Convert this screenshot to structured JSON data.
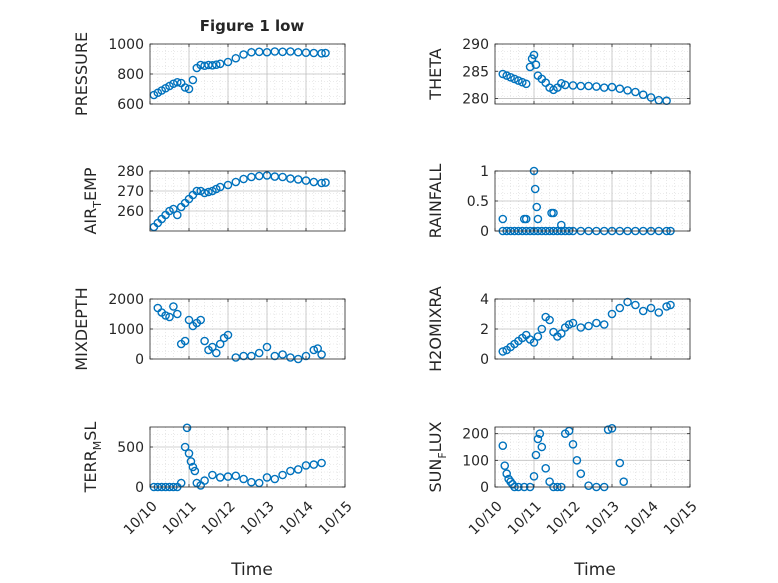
{
  "figure": {
    "title": "Figure 1 low",
    "xlabel": "Time"
  },
  "marker_color": "#0072BD",
  "x_ticks": [
    "10/10",
    "10/11",
    "10/12",
    "10/13",
    "10/14",
    "10/15"
  ],
  "chart_data": [
    {
      "type": "scatter",
      "id": "pressure",
      "ylabel": "PRESSURE",
      "title": "Figure 1 low",
      "xlim": [
        0,
        5
      ],
      "ylim": [
        600,
        1000
      ],
      "yticks": [
        600,
        800,
        1000
      ],
      "yticklabels": [
        "600",
        "800",
        "1000"
      ],
      "grid": true,
      "x": [
        0.1,
        0.2,
        0.3,
        0.4,
        0.5,
        0.6,
        0.7,
        0.8,
        0.9,
        1.0,
        1.1,
        1.2,
        1.3,
        1.4,
        1.5,
        1.6,
        1.7,
        1.8,
        2.0,
        2.2,
        2.4,
        2.6,
        2.8,
        3.0,
        3.2,
        3.4,
        3.6,
        3.8,
        4.0,
        4.2,
        4.4,
        4.5
      ],
      "y": [
        660,
        675,
        690,
        705,
        720,
        735,
        745,
        740,
        710,
        700,
        760,
        840,
        860,
        855,
        860,
        858,
        862,
        868,
        880,
        905,
        930,
        945,
        948,
        945,
        950,
        948,
        950,
        945,
        942,
        940,
        938,
        940
      ]
    },
    {
      "type": "scatter",
      "id": "theta",
      "ylabel": "THETA",
      "xlim": [
        0,
        5
      ],
      "ylim": [
        279,
        290
      ],
      "yticks": [
        280,
        285,
        290
      ],
      "yticklabels": [
        "280",
        "285",
        "290"
      ],
      "grid": true,
      "x": [
        0.2,
        0.3,
        0.4,
        0.5,
        0.6,
        0.7,
        0.8,
        0.9,
        0.95,
        1.0,
        1.05,
        1.1,
        1.2,
        1.3,
        1.4,
        1.5,
        1.6,
        1.7,
        1.8,
        2.0,
        2.2,
        2.4,
        2.6,
        2.8,
        3.0,
        3.2,
        3.4,
        3.6,
        3.8,
        4.0,
        4.2,
        4.4
      ],
      "y": [
        284.5,
        284.2,
        283.9,
        283.6,
        283.3,
        283.0,
        282.7,
        285.8,
        287.3,
        288.0,
        286.2,
        284.2,
        283.6,
        282.9,
        282.0,
        281.6,
        282.0,
        282.8,
        282.5,
        282.4,
        282.3,
        282.3,
        282.2,
        282.0,
        282.1,
        281.8,
        281.5,
        281.2,
        280.7,
        280.2,
        279.7,
        279.6
      ]
    },
    {
      "type": "scatter",
      "id": "air_temp",
      "ylabel": "AIR_TEMP",
      "xlim": [
        0,
        5
      ],
      "ylim": [
        250,
        280
      ],
      "yticks": [
        260,
        270,
        280
      ],
      "yticklabels": [
        "260",
        "270",
        "280"
      ],
      "grid": true,
      "x": [
        0.1,
        0.2,
        0.3,
        0.4,
        0.5,
        0.6,
        0.7,
        0.8,
        0.9,
        1.0,
        1.1,
        1.2,
        1.3,
        1.4,
        1.5,
        1.6,
        1.7,
        1.8,
        2.0,
        2.2,
        2.4,
        2.6,
        2.8,
        3.0,
        3.2,
        3.4,
        3.6,
        3.8,
        4.0,
        4.2,
        4.4,
        4.5
      ],
      "y": [
        252,
        254,
        256,
        258,
        260,
        261,
        258,
        262,
        264,
        266,
        268,
        270,
        270,
        269,
        269.5,
        270,
        271,
        272,
        273,
        274.5,
        276,
        277,
        277.5,
        277.8,
        277.2,
        277.0,
        276.2,
        275.8,
        275.2,
        274.5,
        274.0,
        274.2
      ]
    },
    {
      "type": "scatter",
      "id": "rainfall",
      "ylabel": "RAINFALL",
      "xlim": [
        0,
        5
      ],
      "ylim": [
        0,
        1
      ],
      "yticks": [
        0,
        0.5,
        1
      ],
      "yticklabels": [
        "0",
        "0.5",
        "1"
      ],
      "grid": true,
      "x": [
        0.2,
        0.3,
        0.4,
        0.5,
        0.6,
        0.7,
        0.8,
        0.9,
        1.0,
        1.1,
        1.2,
        1.3,
        1.4,
        1.5,
        1.6,
        1.7,
        1.8,
        1.9,
        2.0,
        2.2,
        2.4,
        2.6,
        2.8,
        3.0,
        3.2,
        3.4,
        3.6,
        3.8,
        4.0,
        4.2,
        4.4,
        4.5,
        0.2,
        0.75,
        0.8,
        1.0,
        1.03,
        1.07,
        1.1,
        1.45,
        1.5,
        1.7
      ],
      "y": [
        0,
        0,
        0,
        0,
        0,
        0,
        0,
        0,
        0,
        0,
        0,
        0,
        0,
        0,
        0,
        0,
        0,
        0,
        0,
        0,
        0,
        0,
        0,
        0,
        0,
        0,
        0,
        0,
        0,
        0,
        0,
        0,
        0.2,
        0.2,
        0.2,
        1.0,
        0.7,
        0.4,
        0.2,
        0.3,
        0.3,
        0.1
      ]
    },
    {
      "type": "scatter",
      "id": "mixdepth",
      "ylabel": "MIXDEPTH",
      "xlim": [
        0,
        5
      ],
      "ylim": [
        0,
        2000
      ],
      "yticks": [
        0,
        1000,
        2000
      ],
      "yticklabels": [
        "0",
        "1000",
        "2000"
      ],
      "grid": true,
      "x": [
        0.2,
        0.3,
        0.4,
        0.5,
        0.6,
        0.7,
        0.8,
        0.9,
        1.0,
        1.1,
        1.2,
        1.3,
        1.4,
        1.5,
        1.6,
        1.7,
        1.8,
        1.9,
        2.0,
        2.2,
        2.4,
        2.6,
        2.8,
        3.0,
        3.2,
        3.4,
        3.6,
        3.8,
        4.0,
        4.2,
        4.3,
        4.4
      ],
      "y": [
        1700,
        1550,
        1450,
        1400,
        1750,
        1500,
        500,
        600,
        1300,
        1100,
        1200,
        1300,
        600,
        300,
        400,
        200,
        500,
        700,
        800,
        50,
        100,
        100,
        200,
        400,
        100,
        150,
        50,
        0,
        100,
        300,
        350,
        150
      ]
    },
    {
      "type": "scatter",
      "id": "h2omixra",
      "ylabel": "H2OMIXRA",
      "xlim": [
        0,
        5
      ],
      "ylim": [
        0,
        4
      ],
      "yticks": [
        0,
        2,
        4
      ],
      "yticklabels": [
        "0",
        "2",
        "4"
      ],
      "grid": true,
      "x": [
        0.2,
        0.3,
        0.4,
        0.5,
        0.6,
        0.7,
        0.8,
        0.9,
        1.0,
        1.1,
        1.2,
        1.3,
        1.4,
        1.5,
        1.6,
        1.7,
        1.8,
        1.9,
        2.0,
        2.2,
        2.4,
        2.6,
        2.8,
        3.0,
        3.2,
        3.4,
        3.6,
        3.8,
        4.0,
        4.2,
        4.4,
        4.5
      ],
      "y": [
        0.5,
        0.6,
        0.8,
        1.0,
        1.2,
        1.4,
        1.6,
        1.3,
        1.1,
        1.5,
        2.0,
        2.8,
        2.6,
        1.8,
        1.5,
        1.7,
        2.1,
        2.3,
        2.4,
        2.1,
        2.2,
        2.4,
        2.3,
        3.0,
        3.4,
        3.8,
        3.6,
        3.2,
        3.4,
        3.1,
        3.5,
        3.6
      ]
    },
    {
      "type": "scatter",
      "id": "terr_msl",
      "ylabel": "TERR_MSL",
      "xlim": [
        0,
        5
      ],
      "ylim": [
        0,
        750
      ],
      "yticks": [
        0,
        500
      ],
      "yticklabels": [
        "0",
        "500"
      ],
      "grid": true,
      "x": [
        0.1,
        0.2,
        0.3,
        0.4,
        0.5,
        0.6,
        0.7,
        0.8,
        0.9,
        0.95,
        1.0,
        1.05,
        1.1,
        1.15,
        1.2,
        1.3,
        1.4,
        1.6,
        1.8,
        2.0,
        2.2,
        2.4,
        2.6,
        2.8,
        3.0,
        3.2,
        3.4,
        3.6,
        3.8,
        4.0,
        4.2,
        4.4
      ],
      "y": [
        0,
        0,
        0,
        0,
        0,
        0,
        0,
        50,
        500,
        740,
        420,
        320,
        250,
        200,
        50,
        20,
        80,
        150,
        120,
        130,
        140,
        100,
        60,
        50,
        120,
        100,
        150,
        200,
        220,
        270,
        280,
        300
      ]
    },
    {
      "type": "scatter",
      "id": "sun_flux",
      "ylabel": "SUN_FLUX",
      "xlim": [
        0,
        5
      ],
      "ylim": [
        0,
        225
      ],
      "yticks": [
        0,
        100,
        200
      ],
      "yticklabels": [
        "0",
        "100",
        "200"
      ],
      "grid": true,
      "x": [
        0.2,
        0.25,
        0.3,
        0.35,
        0.4,
        0.45,
        0.5,
        0.6,
        0.75,
        0.9,
        1.0,
        1.05,
        1.1,
        1.15,
        1.2,
        1.3,
        1.4,
        1.5,
        1.6,
        1.7,
        1.8,
        1.9,
        2.0,
        2.1,
        2.2,
        2.4,
        2.6,
        2.8,
        2.9,
        3.0,
        3.2,
        3.3
      ],
      "y": [
        155,
        80,
        50,
        30,
        20,
        10,
        0,
        0,
        0,
        0,
        40,
        120,
        180,
        200,
        150,
        70,
        20,
        0,
        0,
        0,
        200,
        210,
        160,
        100,
        50,
        5,
        0,
        0,
        215,
        220,
        90,
        20
      ]
    }
  ]
}
